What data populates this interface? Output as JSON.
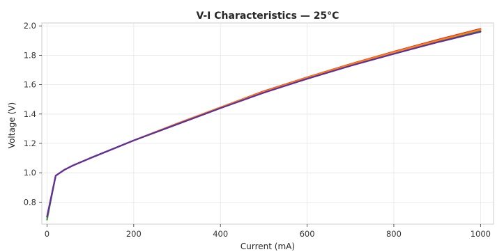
{
  "chart_data": {
    "type": "line",
    "title": "V-I Characteristics — 25°C",
    "xlabel": "Current (mA)",
    "ylabel": "Voltage (V)",
    "xlim": [
      -12,
      1030
    ],
    "ylim": [
      0.65,
      2.02
    ],
    "xticks": [
      0,
      200,
      400,
      600,
      800,
      1000
    ],
    "yticks": [
      0.8,
      1.0,
      1.2,
      1.4,
      1.6,
      1.8,
      2.0
    ],
    "xtick_labels": [
      "0",
      "200",
      "400",
      "600",
      "800",
      "1000"
    ],
    "ytick_labels": [
      "0.8",
      "1.0",
      "1.2",
      "1.4",
      "1.6",
      "1.8",
      "2.0"
    ],
    "grid": true,
    "legend": "none",
    "series": [
      {
        "color": "#2ca02c",
        "x": [
          0,
          20,
          40,
          60,
          100,
          200,
          300,
          400,
          500,
          600,
          700,
          800,
          900,
          1000
        ],
        "y": [
          0.68,
          0.98,
          1.02,
          1.05,
          1.1,
          1.22,
          1.33,
          1.44,
          1.55,
          1.64,
          1.73,
          1.81,
          1.89,
          1.965
        ]
      },
      {
        "color": "#d62728",
        "x": [
          0,
          20,
          40,
          60,
          100,
          200,
          300,
          400,
          500,
          600,
          700,
          800,
          900,
          1000
        ],
        "y": [
          0.7,
          0.98,
          1.02,
          1.05,
          1.1,
          1.22,
          1.335,
          1.445,
          1.555,
          1.65,
          1.74,
          1.825,
          1.905,
          1.98
        ]
      },
      {
        "color": "#ff7f0e",
        "x": [
          0,
          20,
          40,
          60,
          100,
          200,
          300,
          400,
          500,
          600,
          700,
          800,
          900,
          1000
        ],
        "y": [
          0.7,
          0.98,
          1.02,
          1.05,
          1.1,
          1.22,
          1.335,
          1.445,
          1.552,
          1.648,
          1.738,
          1.822,
          1.9,
          1.975
        ]
      },
      {
        "color": "#5b2ea6",
        "x": [
          0,
          20,
          40,
          60,
          100,
          200,
          300,
          400,
          500,
          600,
          700,
          800,
          900,
          1000
        ],
        "y": [
          0.7,
          0.98,
          1.02,
          1.05,
          1.1,
          1.22,
          1.33,
          1.44,
          1.545,
          1.64,
          1.728,
          1.81,
          1.888,
          1.96
        ]
      }
    ]
  }
}
